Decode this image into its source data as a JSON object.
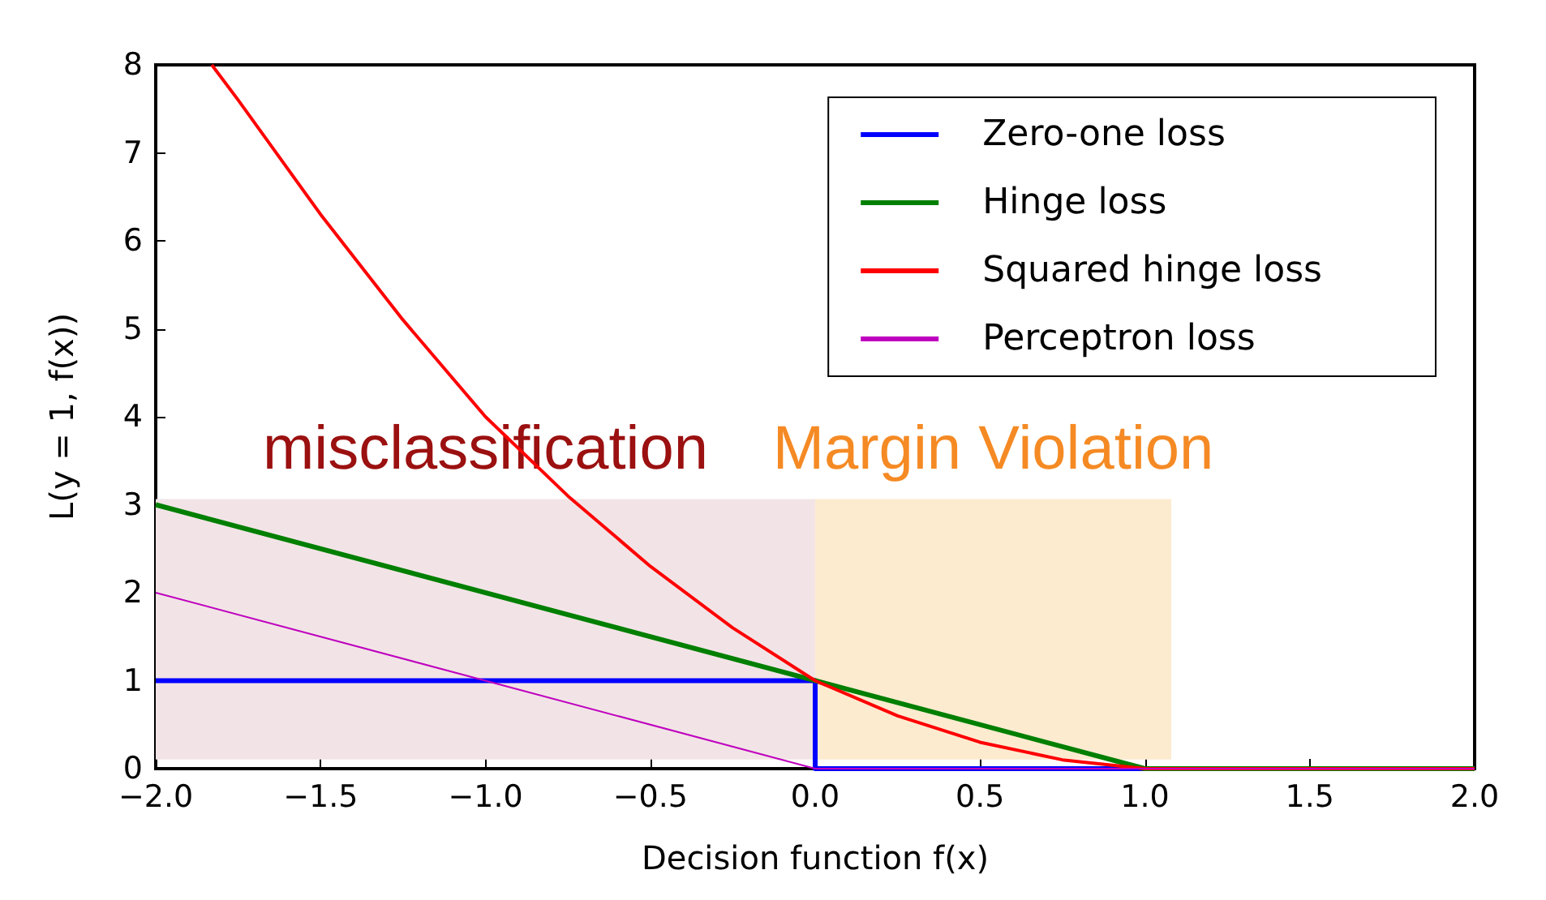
{
  "chart_data": {
    "type": "line",
    "xlabel": "Decision function f(x)",
    "ylabel": "L(y = 1, f(x))",
    "xlim": [
      -2,
      2
    ],
    "ylim": [
      0,
      8
    ],
    "xticks": [
      {
        "value": -2,
        "label": "−2.0"
      },
      {
        "value": -1.5,
        "label": "−1.5"
      },
      {
        "value": -1,
        "label": "−1.0"
      },
      {
        "value": -0.5,
        "label": "−0.5"
      },
      {
        "value": 0,
        "label": "0.0"
      },
      {
        "value": 0.5,
        "label": "0.5"
      },
      {
        "value": 1,
        "label": "1.0"
      },
      {
        "value": 1.5,
        "label": "1.5"
      },
      {
        "value": 2,
        "label": "2.0"
      }
    ],
    "yticks": [
      0,
      1,
      2,
      3,
      4,
      5,
      6,
      7,
      8
    ],
    "series": [
      {
        "name": "Zero-one loss",
        "color": "#0000ff",
        "x": [
          -2,
          0,
          0,
          2
        ],
        "values": [
          1,
          1,
          0,
          0
        ]
      },
      {
        "name": "Hinge loss",
        "color": "#007f00",
        "x": [
          -2,
          1,
          2
        ],
        "values": [
          3,
          0,
          0
        ]
      },
      {
        "name": "Squared hinge loss",
        "color": "#ff0000",
        "x": [
          -1.83,
          -1.75,
          -1.5,
          -1.25,
          -1,
          -0.75,
          -0.5,
          -0.25,
          0,
          0.25,
          0.5,
          0.75,
          1,
          2
        ],
        "values": [
          8.0,
          7.6,
          6.3,
          5.1,
          4,
          3.1,
          2.3,
          1.6,
          1,
          0.6,
          0.3,
          0.1,
          0,
          0
        ]
      },
      {
        "name": "Perceptron loss",
        "color": "#bf00bf",
        "x": [
          -2,
          0,
          2
        ],
        "values": [
          2,
          0,
          0
        ]
      }
    ],
    "bands": [
      {
        "axis": "x",
        "from": -2,
        "to": 0,
        "label": "misclassification",
        "color": "#f2e4e6"
      },
      {
        "axis": "x",
        "from": 0,
        "to": 1.08,
        "label": "Margin Violation",
        "color": "#fdebd0"
      }
    ],
    "legend": "top right",
    "grid": false,
    "marker": "none",
    "line_style": "solid"
  }
}
